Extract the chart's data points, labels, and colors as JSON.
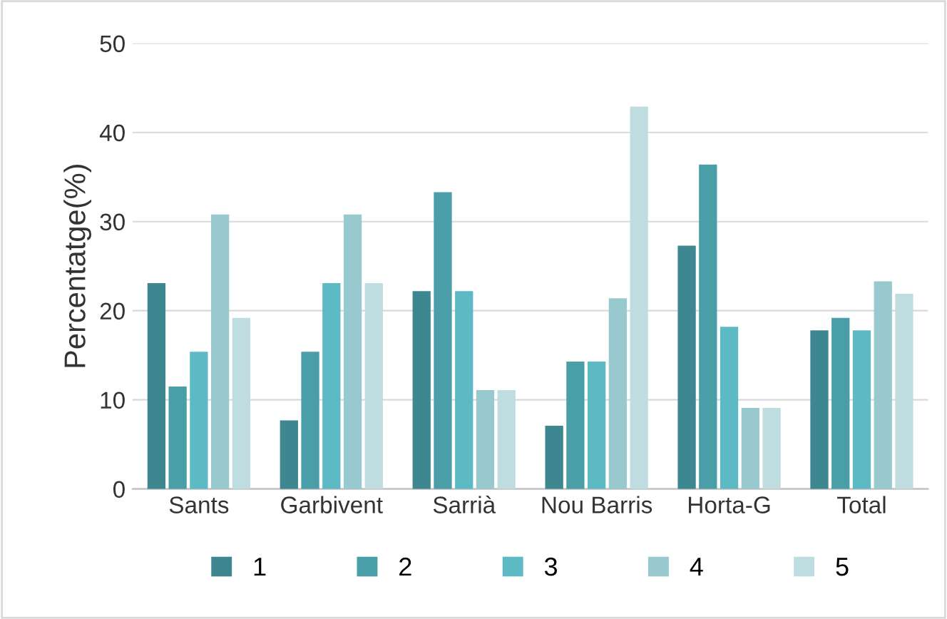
{
  "chart_data": {
    "type": "bar",
    "ylabel": "Percentatge(%)",
    "categories": [
      "Sants",
      "Garbivent",
      "Sarrià",
      "Nou Barris",
      "Horta-G",
      "Total"
    ],
    "series": [
      {
        "name": "1",
        "color": "#3f8790",
        "values": [
          23.1,
          7.7,
          22.2,
          7.1,
          27.3,
          17.8
        ]
      },
      {
        "name": "2",
        "color": "#4a9ea8",
        "values": [
          11.5,
          15.4,
          33.3,
          14.3,
          36.4,
          19.2
        ]
      },
      {
        "name": "3",
        "color": "#5dbac4",
        "values": [
          15.4,
          23.1,
          22.2,
          14.3,
          18.2,
          17.8
        ]
      },
      {
        "name": "4",
        "color": "#98c9cf",
        "values": [
          30.8,
          30.8,
          11.1,
          21.4,
          9.1,
          23.3
        ]
      },
      {
        "name": "5",
        "color": "#bfdde1",
        "values": [
          19.2,
          23.1,
          11.1,
          42.9,
          9.1,
          21.9
        ]
      }
    ],
    "ylim": [
      0,
      50
    ],
    "yticks": [
      0,
      10,
      20,
      30,
      40,
      50
    ],
    "grid": "y",
    "legend": "bottom"
  }
}
